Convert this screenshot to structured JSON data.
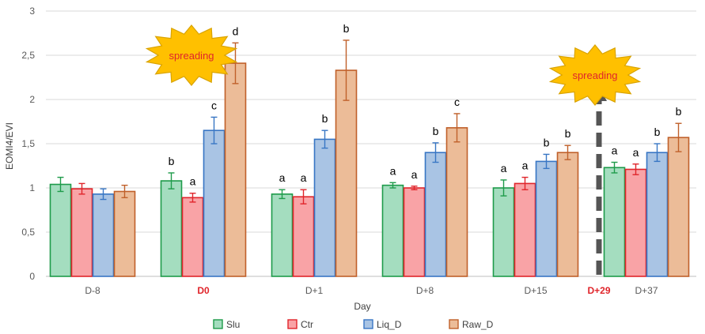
{
  "chart_data": {
    "type": "bar",
    "ylabel": "EOMI4/EVI",
    "xlabel": "Day",
    "ylim": [
      0,
      3
    ],
    "yticks": [
      "0",
      "0,5",
      "1",
      "1,5",
      "2",
      "2,5",
      "3"
    ],
    "grid": "horizontal",
    "legend_position": "bottom-center",
    "categories": [
      "D-8",
      "D0",
      "D+1",
      "D+8",
      "D+15",
      "D+37"
    ],
    "highlighted_categories": [
      "D0"
    ],
    "series": [
      {
        "name": "Slu",
        "fill": "#a4ddbf",
        "edge": "#1e9b4a",
        "values": [
          1.04,
          1.08,
          0.93,
          1.03,
          1.0,
          1.23
        ],
        "errors": [
          0.08,
          0.09,
          0.05,
          0.03,
          0.09,
          0.06
        ],
        "letters": [
          "",
          "b",
          "a",
          "a",
          "a",
          "a"
        ]
      },
      {
        "name": "Ctr",
        "fill": "#f9a3a6",
        "edge": "#e0252b",
        "values": [
          0.99,
          0.89,
          0.9,
          1.0,
          1.05,
          1.21
        ],
        "errors": [
          0.06,
          0.05,
          0.08,
          0.02,
          0.07,
          0.06
        ],
        "letters": [
          "",
          "a",
          "a",
          "a",
          "a",
          "a"
        ]
      },
      {
        "name": "Liq_D",
        "fill": "#a9c4e4",
        "edge": "#3876c4",
        "values": [
          0.93,
          1.65,
          1.55,
          1.4,
          1.3,
          1.4
        ],
        "errors": [
          0.06,
          0.15,
          0.1,
          0.11,
          0.08,
          0.1
        ],
        "letters": [
          "",
          "c",
          "b",
          "b",
          "b",
          "b"
        ]
      },
      {
        "name": "Raw_D",
        "fill": "#ecbc98",
        "edge": "#c0602a",
        "values": [
          0.96,
          2.41,
          2.33,
          1.68,
          1.4,
          1.57
        ],
        "errors": [
          0.07,
          0.23,
          0.34,
          0.16,
          0.08,
          0.16
        ],
        "letters": [
          "",
          "d",
          "b",
          "c",
          "b",
          "b"
        ]
      }
    ],
    "annotations": [
      {
        "text": "spreading",
        "at": "D0"
      },
      {
        "text": "spreading",
        "at": "D+29"
      }
    ],
    "extra_marker": {
      "label": "D+29",
      "between": [
        "D+15",
        "D+37"
      ]
    },
    "colors": {
      "highlight": "#e0252b",
      "spreading_fill": "#ffc000",
      "spreading_edge": "#d9a300",
      "spreading_text": "#e0252b",
      "arrow": "#555555"
    }
  }
}
